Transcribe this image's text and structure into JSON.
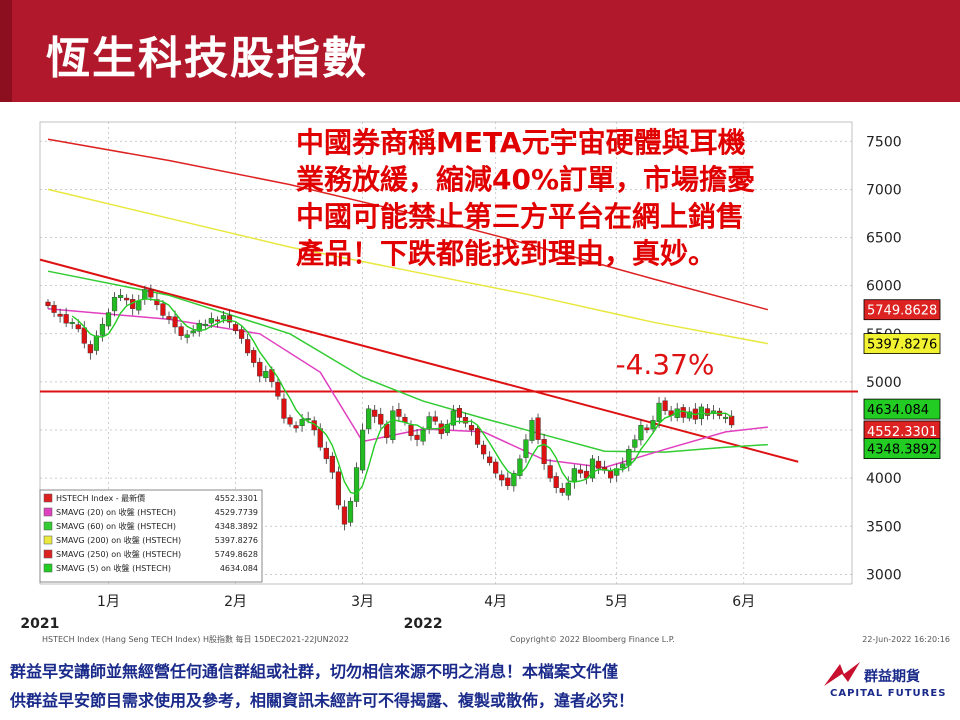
{
  "title": "恆生科技股指數",
  "comment_lines": [
    "中國券商稱META元宇宙硬體與耳機",
    "業務放緩，縮減40%訂單，市場擔憂",
    "中國可能禁止第三方平台在網上銷售",
    "產品！下跌都能找到理由，真妙。"
  ],
  "annotation": "-4.37%",
  "footer_lines": [
    "群益早安講師並無經營任何通信群組或社群，切勿相信來源不明之消息！本檔案文件僅",
    "供群益早安節目需求使用及參考，相關資訊未經許可不得揭露、複製或散佈，違者必究！"
  ],
  "logo": {
    "cn": "群益期貨",
    "en": "CAPITAL FUTURES"
  },
  "colors": {
    "header": "#b2182b",
    "candle_up": "#22bb22",
    "candle_down": "#dd1111",
    "sma20": "#e040c0",
    "sma60": "#33cc33",
    "sma200": "#e8e840",
    "sma250": "#dd2222",
    "sma5": "#22cc22",
    "trendline": "#dd1111"
  },
  "chart_data": {
    "type": "candlestick",
    "y_ticks": [
      3000,
      3500,
      4000,
      4500,
      5000,
      5500,
      6000,
      6500,
      7000,
      7500
    ],
    "ylim": [
      2900,
      7700
    ],
    "x_months": [
      {
        "label": "1月",
        "idx": 10
      },
      {
        "label": "2月",
        "idx": 31
      },
      {
        "label": "3月",
        "idx": 52
      },
      {
        "label": "4月",
        "idx": 74
      },
      {
        "label": "5月",
        "idx": 94
      },
      {
        "label": "6月",
        "idx": 115
      }
    ],
    "year_labels": [
      {
        "label": "2021",
        "idx": -2
      },
      {
        "label": "2022",
        "idx": 62
      }
    ],
    "bottom_left": "HSTECH Index (Hang Seng TECH Index) H股指數  每日 15DEC2021-22JUN2022",
    "bottom_center": "Copyright© 2022 Bloomberg Finance L.P.",
    "bottom_right": "22-Jun-2022 16:20:16",
    "closes": [
      5790,
      5720,
      5680,
      5610,
      5620,
      5550,
      5400,
      5300,
      5480,
      5600,
      5720,
      5880,
      5900,
      5850,
      5760,
      5840,
      5960,
      5880,
      5800,
      5690,
      5650,
      5570,
      5480,
      5490,
      5530,
      5610,
      5600,
      5660,
      5630,
      5690,
      5620,
      5530,
      5450,
      5300,
      5200,
      5060,
      5110,
      5000,
      4850,
      4620,
      4560,
      4520,
      4610,
      4620,
      4500,
      4320,
      4200,
      4060,
      3720,
      3520,
      3760,
      4110,
      4500,
      4720,
      4640,
      4560,
      4420,
      4700,
      4640,
      4580,
      4440,
      4400,
      4500,
      4640,
      4590,
      4460,
      4560,
      4700,
      4630,
      4570,
      4500,
      4350,
      4250,
      4160,
      4050,
      3980,
      3920,
      4050,
      4200,
      4400,
      4600,
      4400,
      4150,
      4000,
      3900,
      3850,
      3950,
      4100,
      4050,
      4000,
      4200,
      4100,
      4080,
      4000,
      4100,
      4150,
      4300,
      4400,
      4550,
      4500,
      4600,
      4780,
      4700,
      4650,
      4720,
      4630,
      4690,
      4610,
      4740,
      4650,
      4700,
      4650,
      4634,
      4552
    ],
    "series": [
      {
        "name": "HSTECH Index - 最新價",
        "last": "4552.3301"
      },
      {
        "name": "SMAVG (20)  on 收盤 (HSTECH)",
        "last": "4529.7739",
        "values": [
          [
            0,
            5760
          ],
          [
            20,
            5650
          ],
          [
            35,
            5500
          ],
          [
            45,
            5100
          ],
          [
            52,
            4380
          ],
          [
            62,
            4510
          ],
          [
            72,
            4480
          ],
          [
            82,
            4190
          ],
          [
            92,
            4110
          ],
          [
            102,
            4300
          ],
          [
            112,
            4480
          ],
          [
            119,
            4530
          ]
        ]
      },
      {
        "name": "SMAVG (60)  on 收盤 (HSTECH)",
        "last": "4348.3892",
        "values": [
          [
            0,
            6150
          ],
          [
            20,
            5900
          ],
          [
            40,
            5500
          ],
          [
            52,
            5050
          ],
          [
            62,
            4800
          ],
          [
            72,
            4620
          ],
          [
            82,
            4450
          ],
          [
            92,
            4280
          ],
          [
            102,
            4270
          ],
          [
            112,
            4320
          ],
          [
            119,
            4348
          ]
        ]
      },
      {
        "name": "SMAVG (200) on 收盤 (HSTECH)",
        "last": "5397.8276",
        "values": [
          [
            0,
            7000
          ],
          [
            20,
            6700
          ],
          [
            40,
            6400
          ],
          [
            60,
            6150
          ],
          [
            80,
            5900
          ],
          [
            100,
            5620
          ],
          [
            119,
            5398
          ]
        ]
      },
      {
        "name": "SMAVG (250) on 收盤 (HSTECH)",
        "last": "5749.8628",
        "values": [
          [
            0,
            7520
          ],
          [
            20,
            7300
          ],
          [
            40,
            7050
          ],
          [
            60,
            6750
          ],
          [
            80,
            6420
          ],
          [
            100,
            6070
          ],
          [
            119,
            5750
          ]
        ]
      },
      {
        "name": "SMAVG (5)  on 收盤 (HSTECH)",
        "last": "4634.084"
      }
    ],
    "hline": 4900,
    "trendline": [
      [
        0,
        6270
      ],
      [
        124,
        4170
      ]
    ],
    "price_tags": [
      "5749.8628",
      "5397.8276",
      "4634.084",
      "4552.3301",
      "4348.3892"
    ]
  }
}
